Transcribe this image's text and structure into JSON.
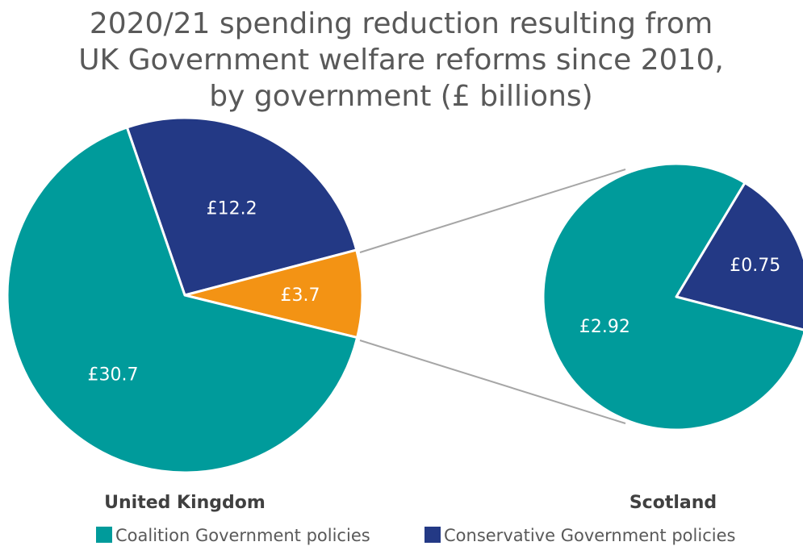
{
  "title_lines": [
    "2020/21 spending reduction resulting from",
    "UK Government welfare reforms since 2010,",
    "by government (£ billions)"
  ],
  "colors": {
    "coalition": "#009b9b",
    "conservative": "#233985",
    "highlight": "#f39314",
    "connector": "#a6a6a6",
    "title": "#595959",
    "caption": "#404040"
  },
  "chart_data": [
    {
      "type": "pie",
      "name": "United Kingdom",
      "slices": [
        {
          "label": "£12.2",
          "value": 12.2,
          "series": "Conservative Government policies",
          "color": "#233985"
        },
        {
          "label": "£3.7",
          "value": 3.7,
          "series": "Scotland",
          "color": "#f39314"
        },
        {
          "label": "£30.7",
          "value": 30.7,
          "series": "Coalition Government policies",
          "color": "#009b9b"
        }
      ]
    },
    {
      "type": "pie",
      "name": "Scotland",
      "slices": [
        {
          "label": "£0.75",
          "value": 0.75,
          "series": "Conservative Government policies",
          "color": "#233985"
        },
        {
          "label": "£2.92",
          "value": 2.92,
          "series": "Coalition Government policies",
          "color": "#009b9b"
        }
      ]
    }
  ],
  "legend": [
    {
      "label": "Coalition Government policies",
      "color": "#009b9b"
    },
    {
      "label": "Conservative Government policies",
      "color": "#233985"
    }
  ]
}
